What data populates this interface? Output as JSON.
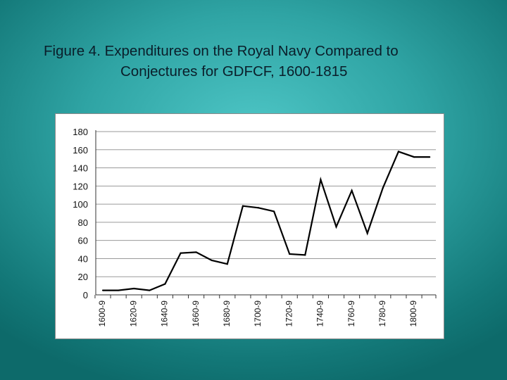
{
  "slide": {
    "title_line1": "Figure 4.  Expenditures on the Royal Navy Compared to",
    "title_line2": "Conjectures for GDFCF, 1600-1815"
  },
  "chart_data": {
    "type": "line",
    "title": "Figure 4.  Expenditures on the Royal Navy Compared to Conjectures for GDFCF, 1600-1815",
    "xlabel": "",
    "ylabel": "",
    "ylim": [
      0,
      180
    ],
    "yticks": [
      0,
      20,
      40,
      60,
      80,
      100,
      120,
      140,
      160,
      180
    ],
    "grid": true,
    "legend": "none",
    "categories": [
      "1600-9",
      "1610-9",
      "1620-9",
      "1630-9",
      "1640-9",
      "1650-9",
      "1660-9",
      "1670-9",
      "1680-9",
      "1690-9",
      "1700-9",
      "1710-9",
      "1720-9",
      "1730-9",
      "1740-9",
      "1750-9",
      "1760-9",
      "1770-9",
      "1780-9",
      "1790-9",
      "1800-9",
      "1810-15"
    ],
    "xtick_labels": [
      "1600-9",
      "1620-9",
      "1640-9",
      "1660-9",
      "1680-9",
      "1700-9",
      "1720-9",
      "1740-9",
      "1760-9",
      "1780-9",
      "1800-9"
    ],
    "series": [
      {
        "values": [
          5,
          5,
          7,
          5,
          12,
          46,
          47,
          38,
          34,
          98,
          96,
          92,
          45,
          44,
          127,
          75,
          115,
          68,
          118,
          158,
          152,
          152
        ],
        "color": "#000000"
      }
    ]
  }
}
